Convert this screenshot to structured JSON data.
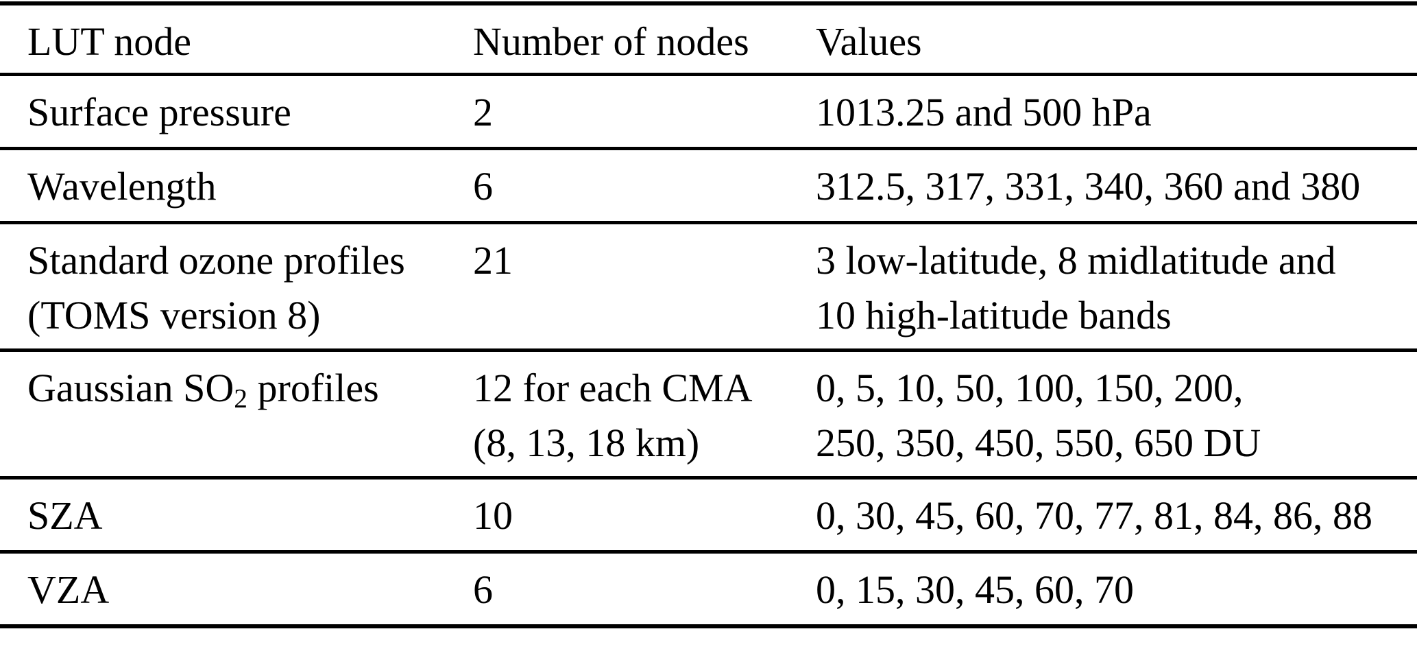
{
  "table": {
    "columns": [
      "LUT node",
      "Number of nodes",
      "Values"
    ],
    "rows": [
      {
        "lut_node": [
          [
            "Surface pressure"
          ]
        ],
        "num_nodes": [
          [
            "2"
          ]
        ],
        "values": [
          [
            "1013.25 and 500 hPa"
          ]
        ]
      },
      {
        "lut_node": [
          [
            "Wavelength"
          ]
        ],
        "num_nodes": [
          [
            "6"
          ]
        ],
        "values": [
          [
            "312.5, 317, 331, 340, 360 and 380"
          ]
        ]
      },
      {
        "lut_node": [
          [
            "Standard ozone profiles"
          ],
          [
            "(TOMS version 8)"
          ]
        ],
        "num_nodes": [
          [
            "21"
          ]
        ],
        "values": [
          [
            "3 low-latitude, 8 midlatitude and"
          ],
          [
            "10 high-latitude bands"
          ]
        ]
      },
      {
        "lut_node": [
          [
            "Gaussian SO",
            {
              "sub": "2"
            },
            " profiles"
          ]
        ],
        "num_nodes": [
          [
            "12 for each CMA"
          ],
          [
            "(8, 13, 18 km)"
          ]
        ],
        "values": [
          [
            "0, 5, 10, 50, 100, 150, 200,"
          ],
          [
            "250, 350, 450, 550, 650 DU"
          ]
        ]
      },
      {
        "lut_node": [
          [
            "SZA"
          ]
        ],
        "num_nodes": [
          [
            "10"
          ]
        ],
        "values": [
          [
            "0, 30, 45, 60, 70, 77, 81, 84, 86, 88"
          ]
        ]
      },
      {
        "lut_node": [
          [
            "VZA"
          ]
        ],
        "num_nodes": [
          [
            "6"
          ]
        ],
        "values": [
          [
            "0, 15, 30, 45, 60, 70"
          ]
        ]
      }
    ]
  }
}
